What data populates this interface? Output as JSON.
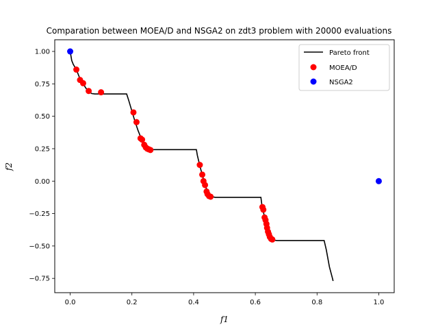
{
  "chart_data": {
    "type": "scatter",
    "title": "Comparation between MOEA/D and NSGA2 on zdt3 problem with 20000 evaluations",
    "xlabel": "f1",
    "ylabel": "f2",
    "xlim": [
      -0.05,
      1.05
    ],
    "ylim": [
      -0.86,
      1.09
    ],
    "xticks": [
      0.0,
      0.2,
      0.4,
      0.6,
      0.8,
      1.0
    ],
    "xtick_labels": [
      "0.0",
      "0.2",
      "0.4",
      "0.6",
      "0.8",
      "1.0"
    ],
    "yticks": [
      -0.75,
      -0.5,
      -0.25,
      0.0,
      0.25,
      0.5,
      0.75,
      1.0
    ],
    "ytick_labels": [
      "−0.75",
      "−0.50",
      "−0.25",
      "0.00",
      "0.25",
      "0.50",
      "0.75",
      "1.00"
    ],
    "legend_position": "top-right",
    "grid": false,
    "series": [
      {
        "name": "Pareto front",
        "kind": "line",
        "color": "#000000",
        "points": [
          [
            0.0,
            1.0
          ],
          [
            0.005,
            0.93
          ],
          [
            0.01,
            0.9
          ],
          [
            0.02,
            0.86
          ],
          [
            0.03,
            0.8
          ],
          [
            0.04,
            0.76
          ],
          [
            0.05,
            0.72
          ],
          [
            0.06,
            0.69
          ],
          [
            0.07,
            0.675
          ],
          [
            0.08,
            0.672
          ],
          [
            0.1,
            0.672
          ],
          [
            0.14,
            0.672
          ],
          [
            0.183,
            0.672
          ],
          [
            0.19,
            0.62
          ],
          [
            0.2,
            0.54
          ],
          [
            0.21,
            0.46
          ],
          [
            0.22,
            0.39
          ],
          [
            0.23,
            0.33
          ],
          [
            0.24,
            0.29
          ],
          [
            0.25,
            0.26
          ],
          [
            0.26,
            0.245
          ],
          [
            0.27,
            0.243
          ],
          [
            0.3,
            0.243
          ],
          [
            0.35,
            0.243
          ],
          [
            0.409,
            0.243
          ],
          [
            0.412,
            0.2
          ],
          [
            0.42,
            0.12
          ],
          [
            0.43,
            0.03
          ],
          [
            0.44,
            -0.05
          ],
          [
            0.45,
            -0.1
          ],
          [
            0.46,
            -0.12
          ],
          [
            0.47,
            -0.125
          ],
          [
            0.5,
            -0.125
          ],
          [
            0.55,
            -0.125
          ],
          [
            0.618,
            -0.125
          ],
          [
            0.621,
            -0.18
          ],
          [
            0.63,
            -0.28
          ],
          [
            0.64,
            -0.37
          ],
          [
            0.65,
            -0.43
          ],
          [
            0.66,
            -0.455
          ],
          [
            0.67,
            -0.458
          ],
          [
            0.7,
            -0.458
          ],
          [
            0.75,
            -0.458
          ],
          [
            0.823,
            -0.458
          ],
          [
            0.83,
            -0.53
          ],
          [
            0.84,
            -0.66
          ],
          [
            0.85,
            -0.75
          ],
          [
            0.852,
            -0.77
          ]
        ]
      },
      {
        "name": "MOEA/D",
        "kind": "scatter",
        "color": "#ff0000",
        "points": [
          [
            0.02,
            0.86
          ],
          [
            0.032,
            0.78
          ],
          [
            0.042,
            0.755
          ],
          [
            0.06,
            0.695
          ],
          [
            0.1,
            0.685
          ],
          [
            0.205,
            0.53
          ],
          [
            0.215,
            0.455
          ],
          [
            0.228,
            0.33
          ],
          [
            0.233,
            0.32
          ],
          [
            0.24,
            0.28
          ],
          [
            0.245,
            0.26
          ],
          [
            0.25,
            0.25
          ],
          [
            0.255,
            0.245
          ],
          [
            0.26,
            0.24
          ],
          [
            0.42,
            0.125
          ],
          [
            0.428,
            0.05
          ],
          [
            0.432,
            0.0
          ],
          [
            0.437,
            -0.03
          ],
          [
            0.442,
            -0.08
          ],
          [
            0.445,
            -0.1
          ],
          [
            0.45,
            -0.115
          ],
          [
            0.455,
            -0.12
          ],
          [
            0.623,
            -0.2
          ],
          [
            0.626,
            -0.22
          ],
          [
            0.63,
            -0.28
          ],
          [
            0.633,
            -0.3
          ],
          [
            0.636,
            -0.33
          ],
          [
            0.638,
            -0.36
          ],
          [
            0.641,
            -0.39
          ],
          [
            0.644,
            -0.41
          ],
          [
            0.647,
            -0.43
          ],
          [
            0.651,
            -0.445
          ],
          [
            0.655,
            -0.45
          ]
        ]
      },
      {
        "name": "NSGA2",
        "kind": "scatter",
        "color": "#0000ff",
        "points": [
          [
            0.0,
            1.0
          ],
          [
            1.0,
            0.0
          ]
        ]
      }
    ]
  }
}
